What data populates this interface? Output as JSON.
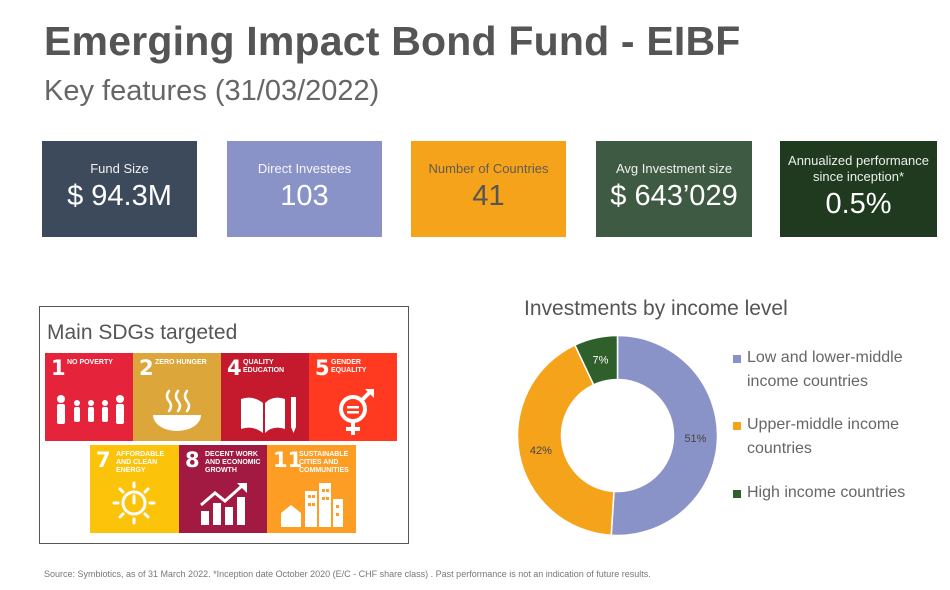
{
  "header": {
    "title": "Emerging Impact Bond Fund - EIBF",
    "subtitle": "Key features (31/03/2022)"
  },
  "kpis": [
    {
      "label": "Fund Size",
      "value": "$ 94.3M",
      "color": "#3c4a5c"
    },
    {
      "label": "Direct Investees",
      "value": "103",
      "color": "#8a93c8"
    },
    {
      "label": "Number of Countries",
      "value": "41",
      "color": "#f5a31a"
    },
    {
      "label": "Avg Investment size",
      "value": "$ 643’029",
      "color": "#3e5a43"
    },
    {
      "label": "Annualized performance since inception*",
      "value": "0.5%",
      "color": "#1f3a1f"
    }
  ],
  "sdgs": {
    "title": "Main SDGs targeted",
    "items": [
      {
        "number": "1",
        "text": "No Poverty",
        "color": "#e5243b",
        "icon": "family-icon"
      },
      {
        "number": "2",
        "text": "Zero Hunger",
        "color": "#dda63a",
        "icon": "bowl-icon"
      },
      {
        "number": "4",
        "text": "Quality Education",
        "color": "#c5192d",
        "icon": "book-pencil-icon"
      },
      {
        "number": "5",
        "text": "Gender Equality",
        "color": "#ff3a21",
        "icon": "gender-icon"
      },
      {
        "number": "7",
        "text": "Affordable and Clean Energy",
        "color": "#fcc30b",
        "icon": "sun-power-icon"
      },
      {
        "number": "8",
        "text": "Decent Work and Economic Growth",
        "color": "#a21942",
        "icon": "growth-chart-icon"
      },
      {
        "number": "11",
        "text": "Sustainable Cities and Communities",
        "color": "#fd9d24",
        "icon": "city-icon"
      }
    ]
  },
  "chart_data": {
    "type": "pie",
    "title": "Investments by income level",
    "categories": [
      "Low and lower-middle income countries",
      "Upper-middle income countries",
      "High income countries"
    ],
    "values": [
      51,
      42,
      7
    ],
    "data_labels": [
      "51%",
      "42%",
      "7%"
    ],
    "colors": [
      "#8a93c8",
      "#f5a31a",
      "#2f5f2a"
    ],
    "donut": true,
    "legend_position": "right"
  },
  "footnote": "Source: Symbiotics, as of 31 March 2022. *Inception date October 2020 (E/C - CHF share class) . Past performance is not an indication of future results."
}
